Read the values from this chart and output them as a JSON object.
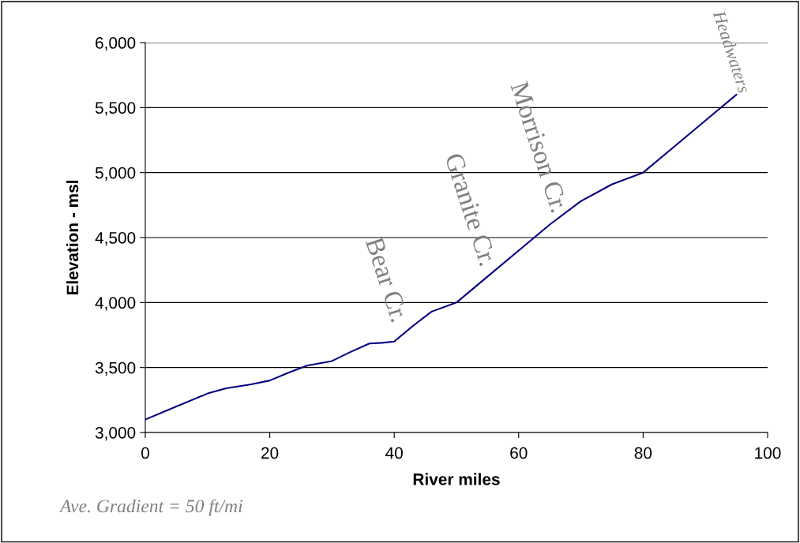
{
  "chart_data": {
    "type": "line",
    "xlabel": "River miles",
    "ylabel": "Elevation - msl",
    "x": [
      0,
      5,
      10,
      13,
      17,
      20,
      23,
      26,
      30,
      33,
      36,
      38,
      40,
      43,
      46,
      50,
      55,
      60,
      65,
      70,
      75,
      80,
      85,
      90,
      95
    ],
    "series": [
      {
        "color": "#000080",
        "values": [
          3100,
          3200,
          3300,
          3340,
          3370,
          3400,
          3460,
          3515,
          3550,
          3620,
          3685,
          3690,
          3700,
          3820,
          3930,
          4000,
          4200,
          4400,
          4600,
          4780,
          4910,
          5000,
          5200,
          5400,
          5600
        ]
      }
    ],
    "xlim": [
      0,
      100
    ],
    "xticks": [
      0,
      20,
      40,
      60,
      80,
      100
    ],
    "ylim": [
      3000,
      6000
    ],
    "yticks": [
      {
        "value": 3000,
        "label": "3,000"
      },
      {
        "value": 3500,
        "label": "3,500"
      },
      {
        "value": 4000,
        "label": "4,000"
      },
      {
        "value": 4500,
        "label": "4,500"
      },
      {
        "value": 5000,
        "label": "5,000"
      },
      {
        "value": 5500,
        "label": "5,500"
      },
      {
        "value": 6000,
        "label": "6,000"
      }
    ],
    "grid": "y",
    "marker": "none",
    "line_style": "solid",
    "annotations": [
      "Bear Cr.",
      "Granite Cr.",
      "Morrison Cr.",
      "Headwaters",
      "Ave. Gradient = 50 ft/mi"
    ]
  }
}
